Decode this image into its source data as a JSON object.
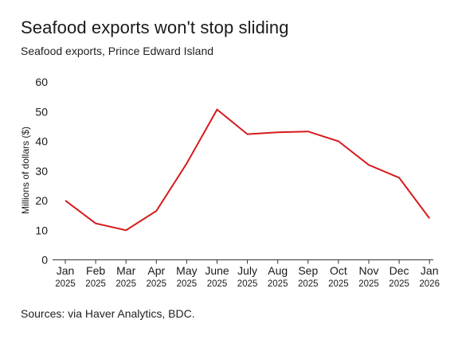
{
  "chart_data": {
    "type": "line",
    "title": "Seafood exports won't stop sliding",
    "subtitle": "Seafood exports, Prince Edward Island",
    "source": "Sources: via Haver Analytics, BDC.",
    "xlabel": "",
    "ylabel": "Millions of dollars ($)",
    "ylim": [
      0,
      60
    ],
    "yticks": [
      0,
      10,
      20,
      30,
      40,
      50,
      60
    ],
    "categories": [
      {
        "month": "Jan",
        "year": "2025"
      },
      {
        "month": "Feb",
        "year": "2025"
      },
      {
        "month": "Mar",
        "year": "2025"
      },
      {
        "month": "Apr",
        "year": "2025"
      },
      {
        "month": "May",
        "year": "2025"
      },
      {
        "month": "June",
        "year": "2025"
      },
      {
        "month": "July",
        "year": "2025"
      },
      {
        "month": "Aug",
        "year": "2025"
      },
      {
        "month": "Sep",
        "year": "2025"
      },
      {
        "month": "Oct",
        "year": "2025"
      },
      {
        "month": "Nov",
        "year": "2025"
      },
      {
        "month": "Dec",
        "year": "2025"
      },
      {
        "month": "Jan",
        "year": "2026"
      }
    ],
    "series": [
      {
        "values": [
          20.0,
          12.3,
          10.0,
          16.5,
          32.5,
          50.7,
          42.4,
          43.0,
          43.3,
          40.0,
          32.0,
          27.7,
          14.0
        ],
        "color": "#d7191c"
      }
    ],
    "grid": false,
    "legend": "none",
    "axis_color": "#333333"
  }
}
